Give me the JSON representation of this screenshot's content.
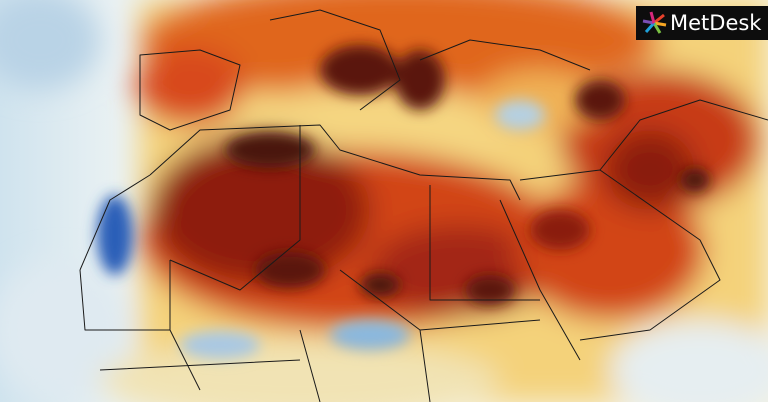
{
  "logo": {
    "text": "MetDesk"
  }
}
